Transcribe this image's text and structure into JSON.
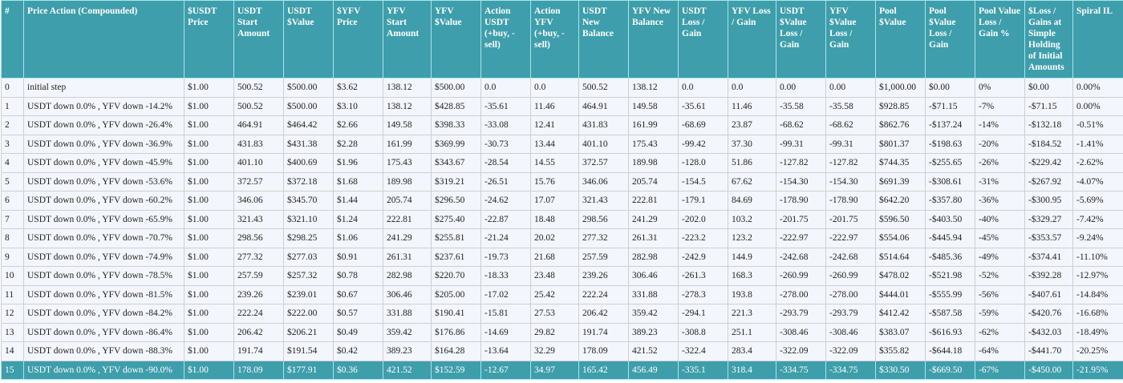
{
  "table": {
    "headers": [
      "#",
      "Price Action (Compounded)",
      "$USDT Price",
      "USDT Start Amount",
      "USDT $Value",
      "$YFV Price",
      "YFV Start Amount",
      "YFV $Value",
      "Action USDT (+buy, -sell)",
      "Action YFV (+buy, -sell)",
      "USDT New Balance",
      "YFV New Balance",
      "USDT Loss / Gain",
      "YFV Loss / Gain",
      "USDT $Value Loss / Gain",
      "YFV $Value Loss / Gain",
      "Pool $Value",
      "Pool $Value Loss / Gain",
      "Pool Value Loss / Gain %",
      "$Loss / Gains at Simple Holding of Initial Amounts",
      "Spiral IL"
    ],
    "highlighted_row": 15,
    "header_color": "#3e9eab",
    "rows": [
      [
        "0",
        "initial step",
        "$1.00",
        "500.52",
        "$500.00",
        "$3.62",
        "138.12",
        "$500.00",
        "0.0",
        "0.0",
        "500.52",
        "138.12",
        "0.0",
        "0.0",
        "0.00",
        "0.00",
        "$1,000.00",
        "$0.00",
        "0%",
        "$0.00",
        "0.00%"
      ],
      [
        "1",
        "USDT down 0.0% , YFV down -14.2%",
        "$1.00",
        "500.52",
        "$500.00",
        "$3.10",
        "138.12",
        "$428.85",
        "-35.61",
        "11.46",
        "464.91",
        "149.58",
        "-35.61",
        "11.46",
        "-35.58",
        "-35.58",
        "$928.85",
        "-$71.15",
        "-7%",
        "-$71.15",
        "0.00%"
      ],
      [
        "2",
        "USDT down 0.0% , YFV down -26.4%",
        "$1.00",
        "464.91",
        "$464.42",
        "$2.66",
        "149.58",
        "$398.33",
        "-33.08",
        "12.41",
        "431.83",
        "161.99",
        "-68.69",
        "23.87",
        "-68.62",
        "-68.62",
        "$862.76",
        "-$137.24",
        "-14%",
        "-$132.18",
        "-0.51%"
      ],
      [
        "3",
        "USDT down 0.0% , YFV down -36.9%",
        "$1.00",
        "431.83",
        "$431.38",
        "$2.28",
        "161.99",
        "$369.99",
        "-30.73",
        "13.44",
        "401.10",
        "175.43",
        "-99.42",
        "37.30",
        "-99.31",
        "-99.31",
        "$801.37",
        "-$198.63",
        "-20%",
        "-$184.52",
        "-1.41%"
      ],
      [
        "4",
        "USDT down 0.0% , YFV down -45.9%",
        "$1.00",
        "401.10",
        "$400.69",
        "$1.96",
        "175.43",
        "$343.67",
        "-28.54",
        "14.55",
        "372.57",
        "189.98",
        "-128.0",
        "51.86",
        "-127.82",
        "-127.82",
        "$744.35",
        "-$255.65",
        "-26%",
        "-$229.42",
        "-2.62%"
      ],
      [
        "5",
        "USDT down 0.0% , YFV down -53.6%",
        "$1.00",
        "372.57",
        "$372.18",
        "$1.68",
        "189.98",
        "$319.21",
        "-26.51",
        "15.76",
        "346.06",
        "205.74",
        "-154.5",
        "67.62",
        "-154.30",
        "-154.30",
        "$691.39",
        "-$308.61",
        "-31%",
        "-$267.92",
        "-4.07%"
      ],
      [
        "6",
        "USDT down 0.0% , YFV down -60.2%",
        "$1.00",
        "346.06",
        "$345.70",
        "$1.44",
        "205.74",
        "$296.50",
        "-24.62",
        "17.07",
        "321.43",
        "222.81",
        "-179.1",
        "84.69",
        "-178.90",
        "-178.90",
        "$642.20",
        "-$357.80",
        "-36%",
        "-$300.95",
        "-5.69%"
      ],
      [
        "7",
        "USDT down 0.0% , YFV down -65.9%",
        "$1.00",
        "321.43",
        "$321.10",
        "$1.24",
        "222.81",
        "$275.40",
        "-22.87",
        "18.48",
        "298.56",
        "241.29",
        "-202.0",
        "103.2",
        "-201.75",
        "-201.75",
        "$596.50",
        "-$403.50",
        "-40%",
        "-$329.27",
        "-7.42%"
      ],
      [
        "8",
        "USDT down 0.0% , YFV down -70.7%",
        "$1.00",
        "298.56",
        "$298.25",
        "$1.06",
        "241.29",
        "$255.81",
        "-21.24",
        "20.02",
        "277.32",
        "261.31",
        "-223.2",
        "123.2",
        "-222.97",
        "-222.97",
        "$554.06",
        "-$445.94",
        "-45%",
        "-$353.57",
        "-9.24%"
      ],
      [
        "9",
        "USDT down 0.0% , YFV down -74.9%",
        "$1.00",
        "277.32",
        "$277.03",
        "$0.91",
        "261.31",
        "$237.61",
        "-19.73",
        "21.68",
        "257.59",
        "282.98",
        "-242.9",
        "144.9",
        "-242.68",
        "-242.68",
        "$514.64",
        "-$485.36",
        "-49%",
        "-$374.41",
        "-11.10%"
      ],
      [
        "10",
        "USDT down 0.0% , YFV down -78.5%",
        "$1.00",
        "257.59",
        "$257.32",
        "$0.78",
        "282.98",
        "$220.70",
        "-18.33",
        "23.48",
        "239.26",
        "306.46",
        "-261.3",
        "168.3",
        "-260.99",
        "-260.99",
        "$478.02",
        "-$521.98",
        "-52%",
        "-$392.28",
        "-12.97%"
      ],
      [
        "11",
        "USDT down 0.0% , YFV down -81.5%",
        "$1.00",
        "239.26",
        "$239.01",
        "$0.67",
        "306.46",
        "$205.00",
        "-17.02",
        "25.42",
        "222.24",
        "331.88",
        "-278.3",
        "193.8",
        "-278.00",
        "-278.00",
        "$444.01",
        "-$555.99",
        "-56%",
        "-$407.61",
        "-14.84%"
      ],
      [
        "12",
        "USDT down 0.0% , YFV down -84.2%",
        "$1.00",
        "222.24",
        "$222.00",
        "$0.57",
        "331.88",
        "$190.41",
        "-15.81",
        "27.53",
        "206.42",
        "359.42",
        "-294.1",
        "221.3",
        "-293.79",
        "-293.79",
        "$412.42",
        "-$587.58",
        "-59%",
        "-$420.76",
        "-16.68%"
      ],
      [
        "13",
        "USDT down 0.0% , YFV down -86.4%",
        "$1.00",
        "206.42",
        "$206.21",
        "$0.49",
        "359.42",
        "$176.86",
        "-14.69",
        "29.82",
        "191.74",
        "389.23",
        "-308.8",
        "251.1",
        "-308.46",
        "-308.46",
        "$383.07",
        "-$616.93",
        "-62%",
        "-$432.03",
        "-18.49%"
      ],
      [
        "14",
        "USDT down 0.0% , YFV down -88.3%",
        "$1.00",
        "191.74",
        "$191.54",
        "$0.42",
        "389.23",
        "$164.28",
        "-13.64",
        "32.29",
        "178.09",
        "421.52",
        "-322.4",
        "283.4",
        "-322.09",
        "-322.09",
        "$355.82",
        "-$644.18",
        "-64%",
        "-$441.70",
        "-20.25%"
      ],
      [
        "15",
        "USDT down 0.0% , YFV down -90.0%",
        "$1.00",
        "178.09",
        "$177.91",
        "$0.36",
        "421.52",
        "$152.59",
        "-12.67",
        "34.97",
        "165.42",
        "456.49",
        "-335.1",
        "318.4",
        "-334.75",
        "-334.75",
        "$330.50",
        "-$669.50",
        "-67%",
        "-$450.00",
        "-21.95%"
      ]
    ]
  }
}
